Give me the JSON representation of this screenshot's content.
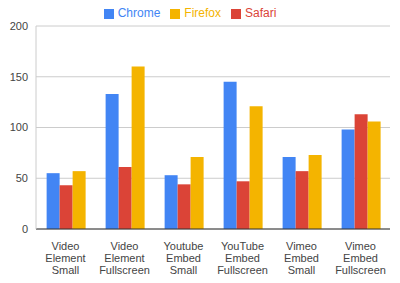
{
  "chart_data": {
    "type": "bar",
    "categories": [
      "Video Element Small",
      "Video Element Fullscreen",
      "Youtube Embed Small",
      "YouTube Embed Fullscreen",
      "Vimeo Embed Small",
      "Vimeo Embed Fullscreen"
    ],
    "series": [
      {
        "name": "Chrome",
        "color": "#4285f4",
        "values": [
          55,
          133,
          53,
          145,
          71,
          98
        ]
      },
      {
        "name": "Safari",
        "color": "#db4437",
        "values": [
          43,
          61,
          44,
          47,
          57,
          113
        ]
      },
      {
        "name": "Firefox",
        "color": "#f4b400",
        "values": [
          57,
          160,
          71,
          121,
          73,
          106
        ]
      }
    ],
    "ylim": [
      0,
      200
    ],
    "yticks": [
      0,
      50,
      100,
      150,
      200
    ],
    "grid": true,
    "legend": "top"
  }
}
